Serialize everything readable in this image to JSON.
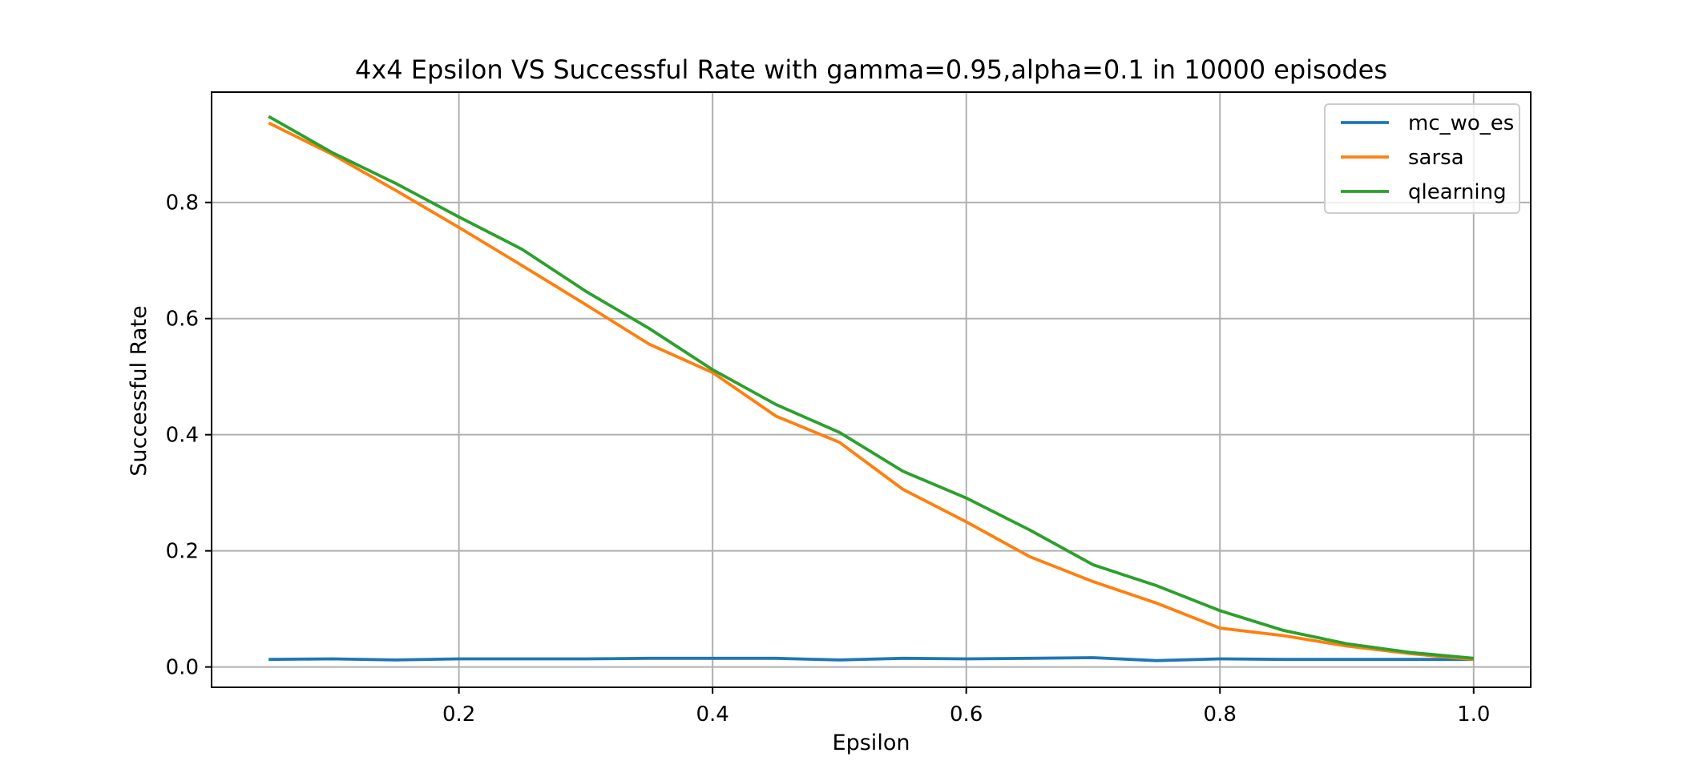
{
  "chart_data": {
    "type": "line",
    "title": "4x4 Epsilon VS Successful Rate with gamma=0.95,alpha=0.1 in 10000 episodes",
    "xlabel": "Epsilon",
    "ylabel": "Successful Rate",
    "xlim": [
      0.005,
      1.045
    ],
    "ylim": [
      -0.035,
      0.99
    ],
    "x_ticks": [
      0.2,
      0.4,
      0.6,
      0.8,
      1.0
    ],
    "x_tick_labels": [
      "0.2",
      "0.4",
      "0.6",
      "0.8",
      "1.0"
    ],
    "y_ticks": [
      0.0,
      0.2,
      0.4,
      0.6,
      0.8
    ],
    "y_tick_labels": [
      "0.0",
      "0.2",
      "0.4",
      "0.6",
      "0.8"
    ],
    "grid": true,
    "legend_position": "top-right",
    "x": [
      0.05,
      0.1,
      0.15,
      0.2,
      0.25,
      0.3,
      0.35,
      0.4,
      0.45,
      0.5,
      0.55,
      0.6,
      0.65,
      0.7,
      0.75,
      0.8,
      0.85,
      0.9,
      0.95,
      1.0
    ],
    "series": [
      {
        "name": "mc_wo_es",
        "color": "#1f77b4",
        "values": [
          0.013,
          0.014,
          0.012,
          0.014,
          0.014,
          0.014,
          0.015,
          0.015,
          0.015,
          0.012,
          0.015,
          0.014,
          0.015,
          0.016,
          0.011,
          0.014,
          0.013,
          0.013,
          0.013,
          0.013
        ]
      },
      {
        "name": "sarsa",
        "color": "#ff7f0e",
        "values": [
          0.937,
          0.883,
          0.821,
          0.757,
          0.691,
          0.624,
          0.556,
          0.507,
          0.432,
          0.387,
          0.306,
          0.25,
          0.19,
          0.147,
          0.11,
          0.067,
          0.054,
          0.036,
          0.023,
          0.013
        ]
      },
      {
        "name": "qlearning",
        "color": "#2ca02c",
        "values": [
          0.948,
          0.886,
          0.833,
          0.775,
          0.719,
          0.647,
          0.583,
          0.512,
          0.452,
          0.404,
          0.337,
          0.291,
          0.236,
          0.176,
          0.14,
          0.097,
          0.063,
          0.04,
          0.025,
          0.015
        ]
      }
    ]
  }
}
